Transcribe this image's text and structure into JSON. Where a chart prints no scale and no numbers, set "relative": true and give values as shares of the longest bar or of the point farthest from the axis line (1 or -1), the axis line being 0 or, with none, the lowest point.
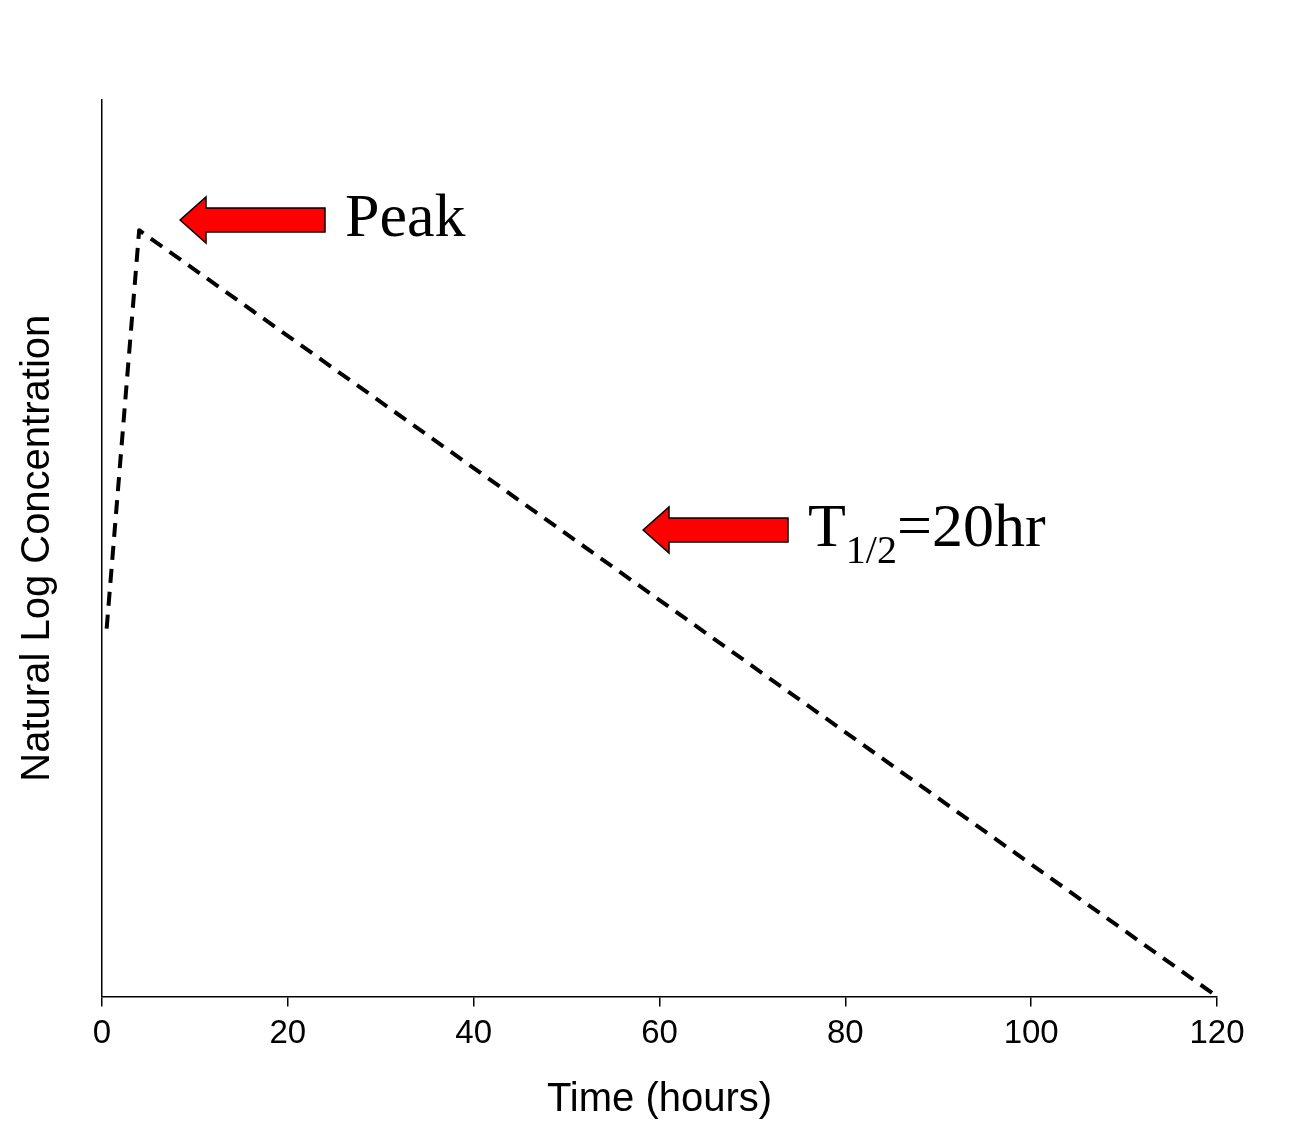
{
  "chart_data": {
    "type": "line",
    "relative": true,
    "xlabel": "Time (hours)",
    "ylabel": "Natural Log Concentration",
    "x": [
      0.5,
      4,
      120
    ],
    "series": [
      {
        "color": "#000000",
        "values": [
          0.48,
          1,
          0
        ]
      }
    ],
    "xlim": [
      0,
      120
    ],
    "xticks": [
      0,
      20,
      40,
      60,
      80,
      100,
      120
    ],
    "annotations": [
      "Peak",
      "T$_{1/2}$=20hr"
    ],
    "marker": "none",
    "line_style": "dashed",
    "grid": false,
    "legend": false
  }
}
